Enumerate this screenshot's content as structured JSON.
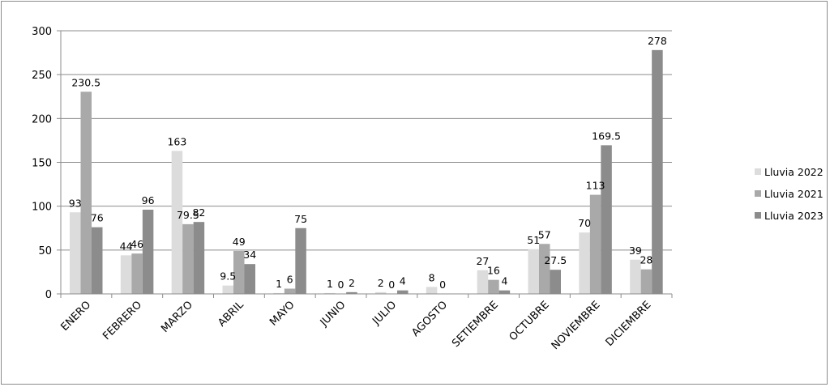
{
  "chart_data": {
    "type": "bar",
    "categories": [
      "ENERO",
      "FEBRERO",
      "MARZO",
      "ABRIL",
      "MAYO",
      "JUNIO",
      "JULIO",
      "AGOSTO",
      "SETIEMBRE",
      "OCTUBRE",
      "NOVIEMBRE",
      "DICIEMBRE"
    ],
    "series": [
      {
        "name": "Lluvia 2022",
        "color": "#dcdcdc",
        "values": [
          93,
          44,
          163,
          9.5,
          1,
          1,
          2,
          8,
          27,
          51,
          70,
          39
        ]
      },
      {
        "name": "Lluvia 2021",
        "color": "#a9a9a9",
        "values": [
          230.5,
          46,
          79.5,
          49,
          6,
          0,
          0,
          0,
          16,
          57,
          113,
          28
        ]
      },
      {
        "name": "Lluvia 2023",
        "color": "#8c8c8c",
        "values": [
          76,
          96,
          82,
          34,
          75,
          2,
          4,
          0,
          4,
          27.5,
          169.5,
          278
        ]
      }
    ],
    "data_labels": [
      [
        "93",
        "44",
        "163",
        "9.5",
        "1",
        "1",
        "2",
        "8",
        "27",
        "51",
        "70",
        "39"
      ],
      [
        "230.5",
        "46",
        "79.5",
        "49",
        "6",
        "0",
        "0",
        "0",
        "16",
        "57",
        "113",
        "28"
      ],
      [
        "76",
        "96",
        "82",
        "34",
        "75",
        "2",
        "4",
        "",
        "4",
        "27.5",
        "169.5",
        "278"
      ]
    ],
    "y_ticks": [
      "0",
      "50",
      "100",
      "150",
      "200",
      "250",
      "300"
    ],
    "ylim": [
      0,
      300
    ],
    "grid": true,
    "legend_position": "right",
    "title": "",
    "xlabel": "",
    "ylabel": ""
  }
}
